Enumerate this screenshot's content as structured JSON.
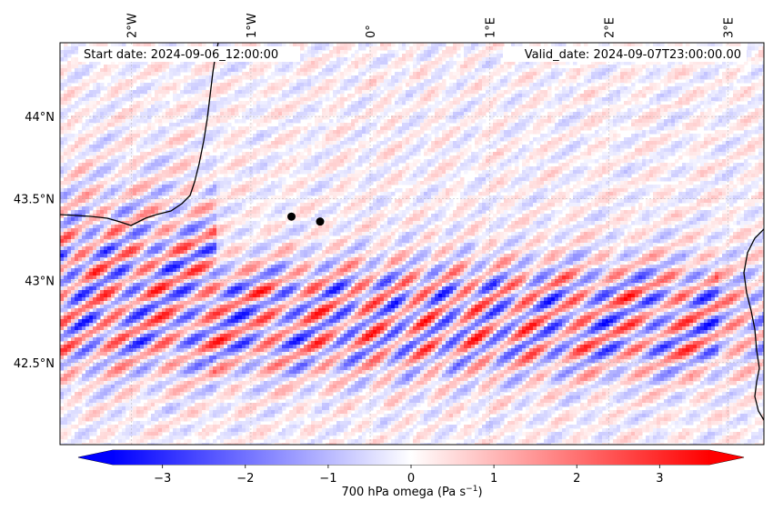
{
  "header": {
    "start_label": "Start date: 2024-09-06_12:00:00",
    "valid_label": "Valid_date: 2024-09-07T23:00:00.00"
  },
  "map": {
    "lon_range": [
      -2.6,
      3.3
    ],
    "lat_range": [
      42.0,
      44.45
    ],
    "lon_ticks": [
      {
        "value": -2,
        "label": "2°W"
      },
      {
        "value": -1,
        "label": "1°W"
      },
      {
        "value": 0,
        "label": "0°"
      },
      {
        "value": 1,
        "label": "1°E"
      },
      {
        "value": 2,
        "label": "2°E"
      },
      {
        "value": 3,
        "label": "3°E"
      }
    ],
    "lat_ticks": [
      {
        "value": 44.0,
        "label": "44°N"
      },
      {
        "value": 43.5,
        "label": "43.5°N"
      },
      {
        "value": 43.0,
        "label": "43°N"
      },
      {
        "value": 42.5,
        "label": "42.5°N"
      }
    ],
    "markers": [
      {
        "lon": -0.66,
        "lat": 43.39
      },
      {
        "lon": -0.42,
        "lat": 43.36
      }
    ],
    "colors": {
      "negative": "#0000ff",
      "positive": "#ff0000",
      "neutral": "#ffffff",
      "coast": "#000000"
    }
  },
  "colorbar": {
    "label": "700 hPa omega (Pa s",
    "label_sup": "−1",
    "label_close": ")",
    "range": [
      -3.6,
      3.6
    ],
    "ticks": [
      {
        "value": -3,
        "label": "−3"
      },
      {
        "value": -2,
        "label": "−2"
      },
      {
        "value": -1,
        "label": "−1"
      },
      {
        "value": 0,
        "label": "0"
      },
      {
        "value": 1,
        "label": "1"
      },
      {
        "value": 2,
        "label": "2"
      },
      {
        "value": 3,
        "label": "3"
      }
    ]
  }
}
